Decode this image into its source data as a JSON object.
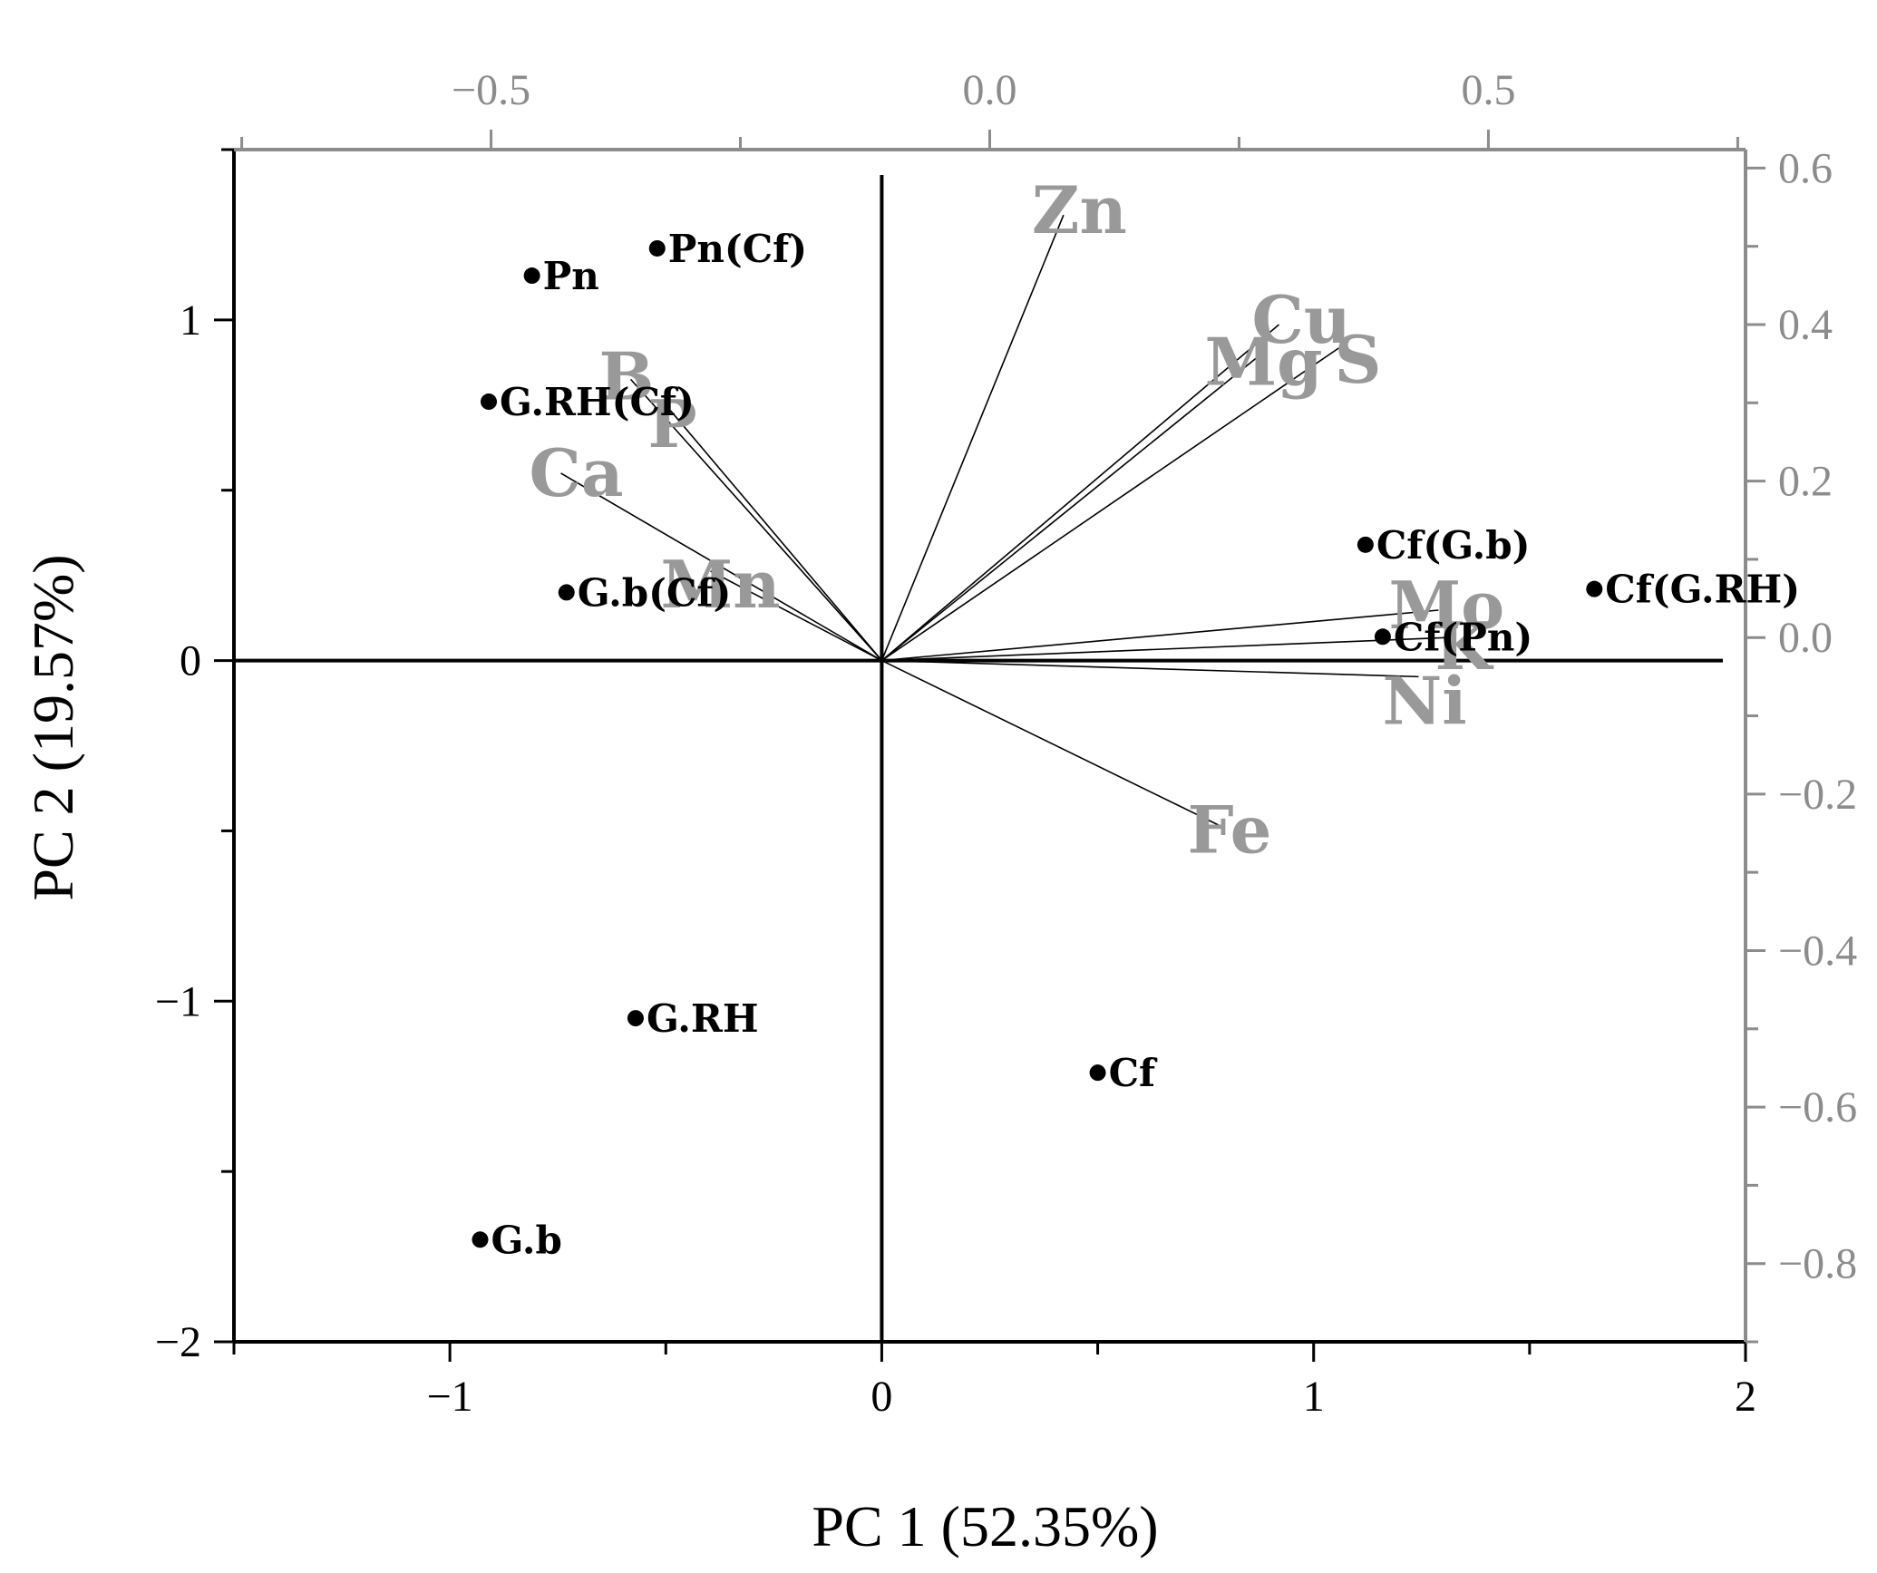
{
  "chart_data": {
    "type": "scatter",
    "subtype": "pca-biplot",
    "xlabel": "PC 1 (52.35%)",
    "ylabel": "PC 2 (19.57%)",
    "xlim": [
      -1.5,
      2.0
    ],
    "ylim": [
      -2.0,
      1.5
    ],
    "xticks": [
      -1,
      0,
      1,
      2
    ],
    "xtick_labels": [
      "−1",
      "0",
      "1",
      "2"
    ],
    "yticks": [
      -2,
      -1,
      0,
      1
    ],
    "ytick_labels": [
      "−2",
      "−1",
      "0",
      "1"
    ],
    "top_axis": {
      "lim": [
        -0.7578,
        0.7578
      ],
      "ticks": [
        -0.5,
        0.0,
        0.5
      ],
      "tick_labels": [
        "−0.5",
        "0.0",
        "0.5"
      ]
    },
    "right_axis": {
      "lim": [
        -0.9,
        0.6236
      ],
      "ticks": [
        0.6,
        0.4,
        0.2,
        0.0,
        -0.2,
        -0.4,
        -0.6,
        -0.8
      ],
      "tick_labels": [
        "0.6",
        "0.4",
        "0.2",
        "0.0",
        "−0.2",
        "−0.4",
        "−0.6",
        "−0.8"
      ]
    },
    "grid": false,
    "colors": {
      "scores": "#000000",
      "loadings": "#999999",
      "axes": "#000000",
      "secondary_axes": "#8c8c8c"
    },
    "scores": [
      {
        "label": "Pn",
        "x": -0.81,
        "y": 1.13
      },
      {
        "label": "Pn(Cf)",
        "x": -0.52,
        "y": 1.21
      },
      {
        "label": "G.RH(Cf)",
        "x": -0.91,
        "y": 0.76
      },
      {
        "label": "G.b(Cf)",
        "x": -0.73,
        "y": 0.2
      },
      {
        "label": "G.RH",
        "x": -0.57,
        "y": -1.05
      },
      {
        "label": "G.b",
        "x": -0.93,
        "y": -1.7
      },
      {
        "label": "Cf",
        "x": 0.5,
        "y": -1.21
      },
      {
        "label": "Cf(G.b)",
        "x": 1.12,
        "y": 0.34
      },
      {
        "label": "Cf(G.RH)",
        "x": 1.65,
        "y": 0.21
      },
      {
        "label": "Cf(Pn)",
        "x": 1.16,
        "y": 0.07
      }
    ],
    "loadings": [
      {
        "label": "Zn",
        "x": 0.074,
        "y": 0.54
      },
      {
        "label": "Cu",
        "x": 0.29,
        "y": 0.4
      },
      {
        "label": "S",
        "x": 0.35,
        "y": 0.37
      },
      {
        "label": "Mg",
        "x": 0.27,
        "y": 0.36
      },
      {
        "label": "B",
        "x": -0.36,
        "y": 0.33
      },
      {
        "label": "P",
        "x": -0.32,
        "y": 0.29
      },
      {
        "label": "Ca",
        "x": -0.43,
        "y": 0.21
      },
      {
        "label": "Mn",
        "x": -0.28,
        "y": 0.085
      },
      {
        "label": "Mo",
        "x": 0.45,
        "y": 0.035
      },
      {
        "label": "K",
        "x": 0.46,
        "y": 0.0
      },
      {
        "label": "Ni",
        "x": 0.43,
        "y": -0.05
      },
      {
        "label": "Fe",
        "x": 0.23,
        "y": -0.24
      }
    ]
  }
}
